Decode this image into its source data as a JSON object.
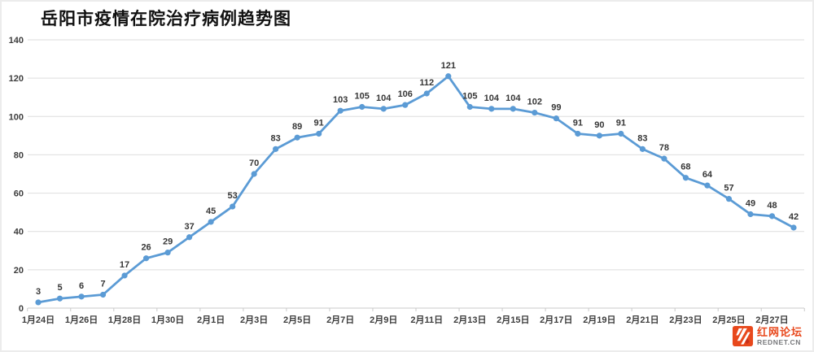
{
  "page": {
    "background": "#ffffff",
    "frame_border_color": "#ececec"
  },
  "chart_data": {
    "type": "line",
    "title": "岳阳市疫情在院治疗病例趋势图",
    "values": [
      3,
      5,
      6,
      7,
      17,
      26,
      29,
      37,
      45,
      53,
      70,
      83,
      89,
      91,
      103,
      105,
      104,
      106,
      112,
      121,
      105,
      104,
      104,
      102,
      99,
      91,
      90,
      91,
      83,
      78,
      68,
      64,
      57,
      49,
      48,
      42
    ],
    "data_labels_shown": true,
    "x_tick_labels": [
      "1月24日",
      "1月26日",
      "1月28日",
      "1月30日",
      "2月1日",
      "2月3日",
      "2月5日",
      "2月7日",
      "2月9日",
      "2月11日",
      "2月13日",
      "2月15日",
      "2月17日",
      "2月19日",
      "2月21日",
      "2月23日",
      "2月25日",
      "2月27日"
    ],
    "x_label_every_n_points": 2,
    "y_ticks": [
      0,
      20,
      40,
      60,
      80,
      100,
      120,
      140
    ],
    "ylim": [
      0,
      140
    ],
    "grid": "horizontal",
    "legend": "none",
    "line_color": "#5B9BD5",
    "marker": "circle",
    "marker_color": "#5B9BD5",
    "gridline_color": "#dedede",
    "axis_line_color": "#c9c9c9",
    "label_color": "#363636"
  },
  "watermark": {
    "site_name": "红网论坛",
    "site_url": "REDNET.CN",
    "logo_color": "#e8481c"
  }
}
